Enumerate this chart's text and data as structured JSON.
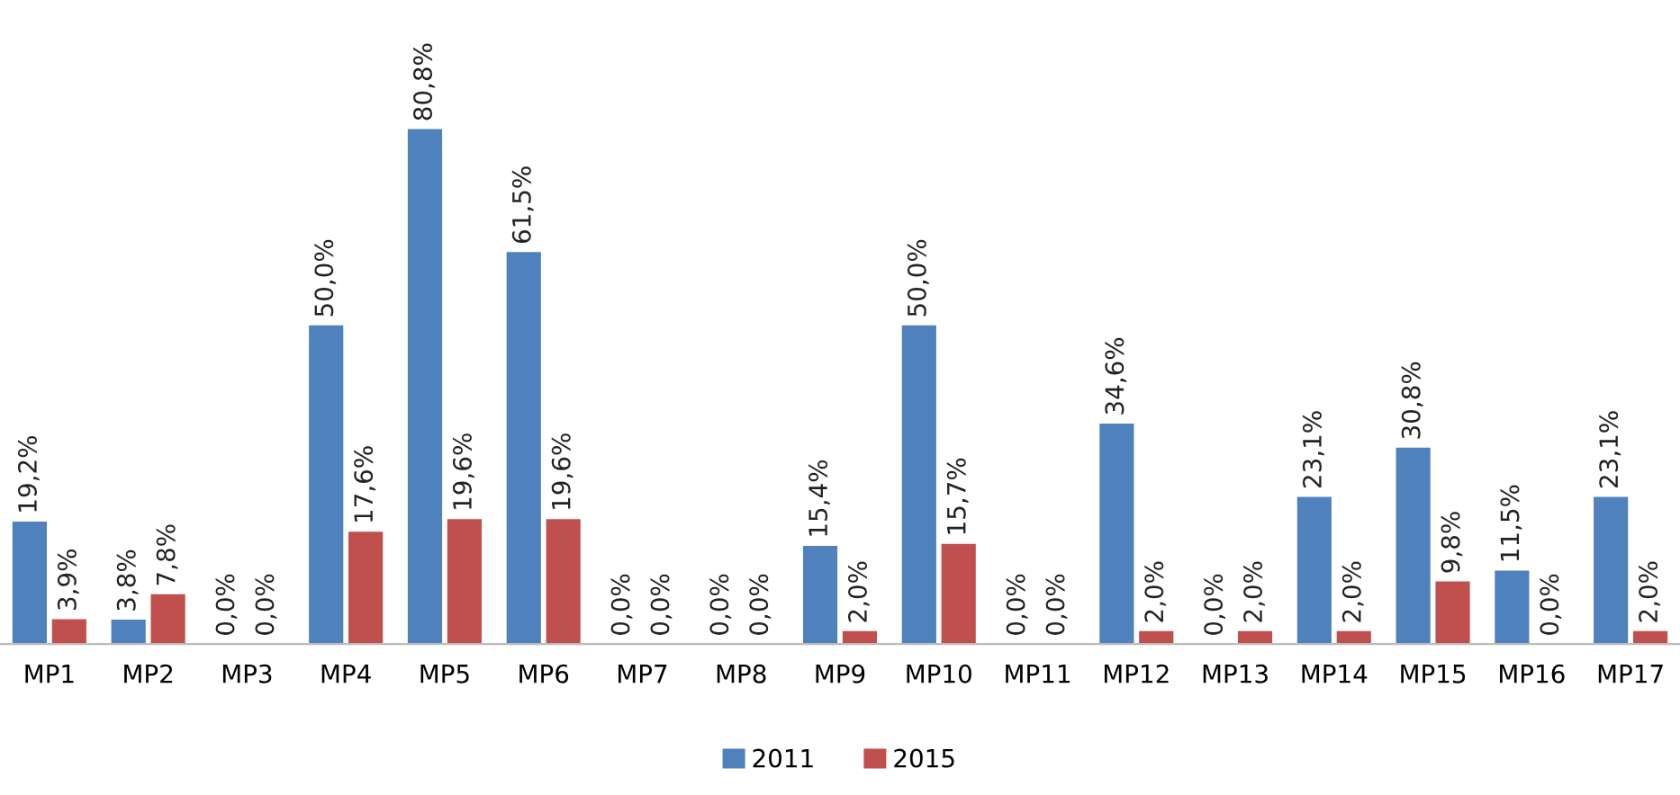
{
  "chart_data": {
    "type": "bar",
    "categories": [
      "MP1",
      "MP2",
      "MP3",
      "MP4",
      "MP5",
      "MP6",
      "MP7",
      "MP8",
      "MP9",
      "MP10",
      "MP11",
      "MP12",
      "MP13",
      "MP14",
      "MP15",
      "MP16",
      "MP17"
    ],
    "series": [
      {
        "name": "2011",
        "color": "#4f81bd",
        "values": [
          19.2,
          3.8,
          0.0,
          50.0,
          80.8,
          61.5,
          0.0,
          0.0,
          15.4,
          50.0,
          0.0,
          34.6,
          0.0,
          23.1,
          30.8,
          11.5,
          23.1
        ],
        "value_labels": [
          "19,2%",
          "3,8%",
          "0,0%",
          "50,0%",
          "80,8%",
          "61,5%",
          "0,0%",
          "0,0%",
          "15,4%",
          "50,0%",
          "0,0%",
          "34,6%",
          "0,0%",
          "23,1%",
          "30,8%",
          "11,5%",
          "23,1%"
        ]
      },
      {
        "name": "2015",
        "color": "#c0504d",
        "values": [
          3.9,
          7.8,
          0.0,
          17.6,
          19.6,
          19.6,
          0.0,
          0.0,
          2.0,
          15.7,
          0.0,
          2.0,
          2.0,
          2.0,
          9.8,
          0.0,
          2.0
        ],
        "value_labels": [
          "3,9%",
          "7,8%",
          "0,0%",
          "17,6%",
          "19,6%",
          "19,6%",
          "0,0%",
          "0,0%",
          "2,0%",
          "15,7%",
          "0,0%",
          "2,0%",
          "2,0%",
          "2,0%",
          "9,8%",
          "0,0%",
          "2,0%"
        ]
      }
    ],
    "legend": "bottom",
    "grid": false
  }
}
